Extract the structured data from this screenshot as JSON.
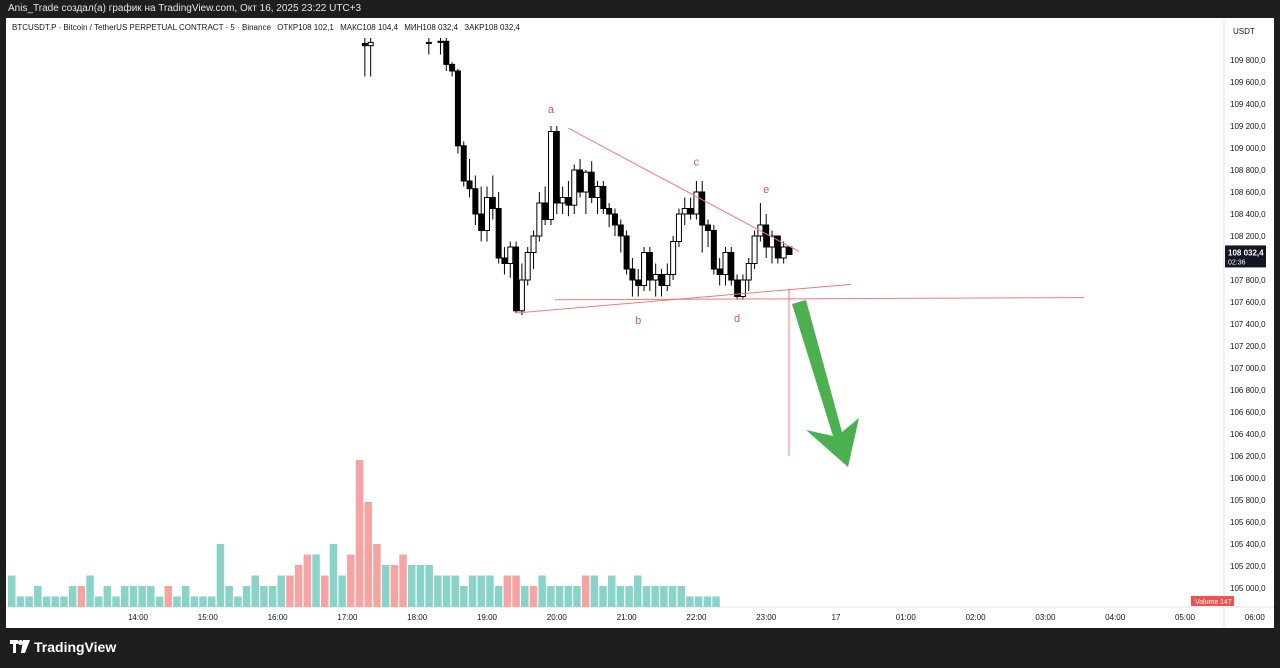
{
  "header": {
    "caption": "Anis_Trade создал(а) график на TradingView.com, Окт 16, 2025 23:22 UTC+3"
  },
  "symbol": {
    "title": "BTCUSDT.P · Bitcoin / TetherUS PERPETUAL CONTRACT · 5 · Binance",
    "open": "ОТКР108 102,1",
    "high": "МАКС108 104,4",
    "low": "МИН108 032,4",
    "close": "ЗАКР108 032,4"
  },
  "axis": {
    "currency": "USDT",
    "price_ticks": [
      "109 800,0",
      "109 600,0",
      "109 400,0",
      "109 200,0",
      "109 000,0",
      "108 800,0",
      "108 600,0",
      "108 400,0",
      "108 200,0",
      "108 000,0",
      "107 800,0",
      "107 600,0",
      "107 400,0",
      "107 200,0",
      "107 000,0",
      "106 800,0",
      "106 600,0",
      "106 400,0",
      "106 200,0",
      "106 000,0",
      "105 800,0",
      "105 600,0",
      "105 400,0",
      "105 200,0",
      "105 000,0"
    ],
    "time_ticks": [
      "14:00",
      "15:00",
      "16:00",
      "17:00",
      "18:00",
      "19:00",
      "20:00",
      "21:00",
      "22:00",
      "23:00",
      "17",
      "01:00",
      "02:00",
      "03:00",
      "04:00",
      "05:00",
      "06:00"
    ],
    "current_price": "108 032,4",
    "countdown": "02:36",
    "volume_label": "Volume",
    "volume_value": "147"
  },
  "annotations": {
    "point_labels": [
      "a",
      "b",
      "c",
      "d",
      "e"
    ]
  },
  "colors": {
    "bg": "#ffffff",
    "candle": "#000000",
    "trendline": "#f07a7a",
    "label": "#e05555",
    "arrow": "#4caf50",
    "vol_up": "#89d3c9",
    "vol_down": "#f5a3a3",
    "price_tag": "#131722",
    "volume_tag": "#ef5350"
  },
  "chart_data": {
    "type": "candlestick",
    "price_range": [
      104900,
      110000
    ],
    "candles": [
      {
        "t": "17:15",
        "o": 109950,
        "h": 110000,
        "l": 109650,
        "c": 109930
      },
      {
        "t": "17:20",
        "o": 109930,
        "h": 110000,
        "l": 109650,
        "c": 109960
      },
      {
        "t": "18:10",
        "o": 109950,
        "h": 110000,
        "l": 109850,
        "c": 109960
      },
      {
        "t": "18:20",
        "o": 109960,
        "h": 110000,
        "l": 109850,
        "c": 109970
      },
      {
        "t": "18:25",
        "o": 109970,
        "h": 110000,
        "l": 109700,
        "c": 109760
      },
      {
        "t": "18:30",
        "o": 109760,
        "h": 109780,
        "l": 109650,
        "c": 109700
      },
      {
        "t": "18:35",
        "o": 109700,
        "h": 109720,
        "l": 108950,
        "c": 109020
      },
      {
        "t": "18:40",
        "o": 109020,
        "h": 109060,
        "l": 108650,
        "c": 108700
      },
      {
        "t": "18:45",
        "o": 108700,
        "h": 108900,
        "l": 108550,
        "c": 108630
      },
      {
        "t": "18:50",
        "o": 108630,
        "h": 108750,
        "l": 108300,
        "c": 108400
      },
      {
        "t": "18:55",
        "o": 108400,
        "h": 108650,
        "l": 108150,
        "c": 108250
      },
      {
        "t": "19:00",
        "o": 108250,
        "h": 108650,
        "l": 108150,
        "c": 108550
      },
      {
        "t": "19:05",
        "o": 108550,
        "h": 108750,
        "l": 108350,
        "c": 108450
      },
      {
        "t": "19:10",
        "o": 108450,
        "h": 108600,
        "l": 107950,
        "c": 108000
      },
      {
        "t": "19:15",
        "o": 108000,
        "h": 108100,
        "l": 107850,
        "c": 107950
      },
      {
        "t": "19:20",
        "o": 107950,
        "h": 108150,
        "l": 107820,
        "c": 108100
      },
      {
        "t": "19:25",
        "o": 108100,
        "h": 108150,
        "l": 107500,
        "c": 107520
      },
      {
        "t": "19:30",
        "o": 107520,
        "h": 107950,
        "l": 107480,
        "c": 107800
      },
      {
        "t": "19:35",
        "o": 107800,
        "h": 108100,
        "l": 107750,
        "c": 108050
      },
      {
        "t": "19:40",
        "o": 108050,
        "h": 108250,
        "l": 107900,
        "c": 108200
      },
      {
        "t": "19:45",
        "o": 108200,
        "h": 108600,
        "l": 108150,
        "c": 108500
      },
      {
        "t": "19:50",
        "o": 108500,
        "h": 108650,
        "l": 108300,
        "c": 108350
      },
      {
        "t": "19:55",
        "o": 108350,
        "h": 109200,
        "l": 108300,
        "c": 109150
      },
      {
        "t": "20:00",
        "o": 109150,
        "h": 109200,
        "l": 108400,
        "c": 108500
      },
      {
        "t": "20:05",
        "o": 108500,
        "h": 108650,
        "l": 108400,
        "c": 108550
      },
      {
        "t": "20:10",
        "o": 108550,
        "h": 108700,
        "l": 108380,
        "c": 108480
      },
      {
        "t": "20:15",
        "o": 108480,
        "h": 108850,
        "l": 108400,
        "c": 108800
      },
      {
        "t": "20:20",
        "o": 108800,
        "h": 108900,
        "l": 108550,
        "c": 108600
      },
      {
        "t": "20:25",
        "o": 108600,
        "h": 108800,
        "l": 108400,
        "c": 108780
      },
      {
        "t": "20:30",
        "o": 108780,
        "h": 108880,
        "l": 108500,
        "c": 108550
      },
      {
        "t": "20:35",
        "o": 108550,
        "h": 108700,
        "l": 108400,
        "c": 108650
      },
      {
        "t": "20:40",
        "o": 108650,
        "h": 108700,
        "l": 108400,
        "c": 108450
      },
      {
        "t": "20:45",
        "o": 108450,
        "h": 108500,
        "l": 108280,
        "c": 108400
      },
      {
        "t": "20:50",
        "o": 108400,
        "h": 108450,
        "l": 108200,
        "c": 108300
      },
      {
        "t": "20:55",
        "o": 108300,
        "h": 108350,
        "l": 108050,
        "c": 108200
      },
      {
        "t": "21:00",
        "o": 108200,
        "h": 108250,
        "l": 107850,
        "c": 107900
      },
      {
        "t": "21:05",
        "o": 107900,
        "h": 108000,
        "l": 107650,
        "c": 107800
      },
      {
        "t": "21:10",
        "o": 107800,
        "h": 107900,
        "l": 107650,
        "c": 107750
      },
      {
        "t": "21:15",
        "o": 107750,
        "h": 108100,
        "l": 107700,
        "c": 108050
      },
      {
        "t": "21:20",
        "o": 108050,
        "h": 108100,
        "l": 107700,
        "c": 107800
      },
      {
        "t": "21:25",
        "o": 107800,
        "h": 107950,
        "l": 107650,
        "c": 107850
      },
      {
        "t": "21:30",
        "o": 107850,
        "h": 107900,
        "l": 107650,
        "c": 107750
      },
      {
        "t": "21:35",
        "o": 107750,
        "h": 107950,
        "l": 107700,
        "c": 107850
      },
      {
        "t": "21:40",
        "o": 107850,
        "h": 108200,
        "l": 107800,
        "c": 108150
      },
      {
        "t": "21:45",
        "o": 108150,
        "h": 108450,
        "l": 108100,
        "c": 108400
      },
      {
        "t": "21:50",
        "o": 108400,
        "h": 108550,
        "l": 108300,
        "c": 108450
      },
      {
        "t": "21:55",
        "o": 108450,
        "h": 108550,
        "l": 108350,
        "c": 108400
      },
      {
        "t": "22:00",
        "o": 108400,
        "h": 108700,
        "l": 108350,
        "c": 108600
      },
      {
        "t": "22:05",
        "o": 108600,
        "h": 108700,
        "l": 108050,
        "c": 108300
      },
      {
        "t": "22:10",
        "o": 108300,
        "h": 108350,
        "l": 108100,
        "c": 108250
      },
      {
        "t": "22:15",
        "o": 108250,
        "h": 108300,
        "l": 107850,
        "c": 107900
      },
      {
        "t": "22:20",
        "o": 107900,
        "h": 108000,
        "l": 107750,
        "c": 107850
      },
      {
        "t": "22:25",
        "o": 107850,
        "h": 108100,
        "l": 107750,
        "c": 108050
      },
      {
        "t": "22:30",
        "o": 108050,
        "h": 108100,
        "l": 107750,
        "c": 107800
      },
      {
        "t": "22:35",
        "o": 107800,
        "h": 107850,
        "l": 107620,
        "c": 107650
      },
      {
        "t": "22:40",
        "o": 107650,
        "h": 107850,
        "l": 107620,
        "c": 107800
      },
      {
        "t": "22:45",
        "o": 107800,
        "h": 108000,
        "l": 107700,
        "c": 107950
      },
      {
        "t": "22:50",
        "o": 107950,
        "h": 108250,
        "l": 107900,
        "c": 108200
      },
      {
        "t": "22:55",
        "o": 108200,
        "h": 108500,
        "l": 108150,
        "c": 108300
      },
      {
        "t": "23:00",
        "o": 108300,
        "h": 108400,
        "l": 108000,
        "c": 108100
      },
      {
        "t": "23:05",
        "o": 108100,
        "h": 108250,
        "l": 107950,
        "c": 108200
      },
      {
        "t": "23:10",
        "o": 108200,
        "h": 108200,
        "l": 107950,
        "c": 108000
      },
      {
        "t": "23:15",
        "o": 108000,
        "h": 108150,
        "l": 107950,
        "c": 108100
      },
      {
        "t": "23:20",
        "o": 108100,
        "h": 108104,
        "l": 108032,
        "c": 108032
      }
    ],
    "volume": {
      "up": [
        3,
        1,
        1,
        2,
        1,
        1,
        1,
        2,
        1,
        3,
        1,
        2,
        1,
        2,
        2,
        2,
        2,
        1,
        1,
        1,
        2,
        1,
        1,
        1,
        6,
        2,
        1,
        2,
        3,
        2,
        2,
        3,
        2,
        3,
        3,
        5,
        2,
        6,
        3,
        3,
        5,
        3,
        4,
        4,
        3,
        2,
        4,
        4,
        4,
        3,
        3,
        3,
        2,
        3,
        3,
        3,
        2,
        2,
        2,
        2,
        1,
        3,
        2,
        2,
        2,
        2,
        2,
        3,
        2,
        3,
        2,
        2,
        3,
        2,
        2,
        2,
        2,
        2,
        1,
        1,
        1,
        1
      ],
      "down": [
        2,
        1,
        1,
        1,
        1,
        1,
        1,
        1,
        2,
        1,
        1,
        2,
        1,
        2,
        1,
        2,
        1,
        1,
        2,
        1,
        2,
        1,
        1,
        1,
        4,
        1,
        1,
        2,
        1,
        2,
        2,
        3,
        3,
        4,
        5,
        2,
        3,
        3,
        2,
        5,
        14,
        10,
        6,
        4,
        4,
        5,
        3,
        4,
        4,
        3,
        3,
        3,
        2,
        3,
        3,
        2,
        2,
        3,
        3,
        2,
        2,
        2,
        2,
        2,
        2,
        2,
        3,
        2,
        2,
        2,
        2,
        1,
        2,
        2,
        1,
        2,
        1,
        1,
        1,
        1,
        1,
        1
      ]
    }
  }
}
